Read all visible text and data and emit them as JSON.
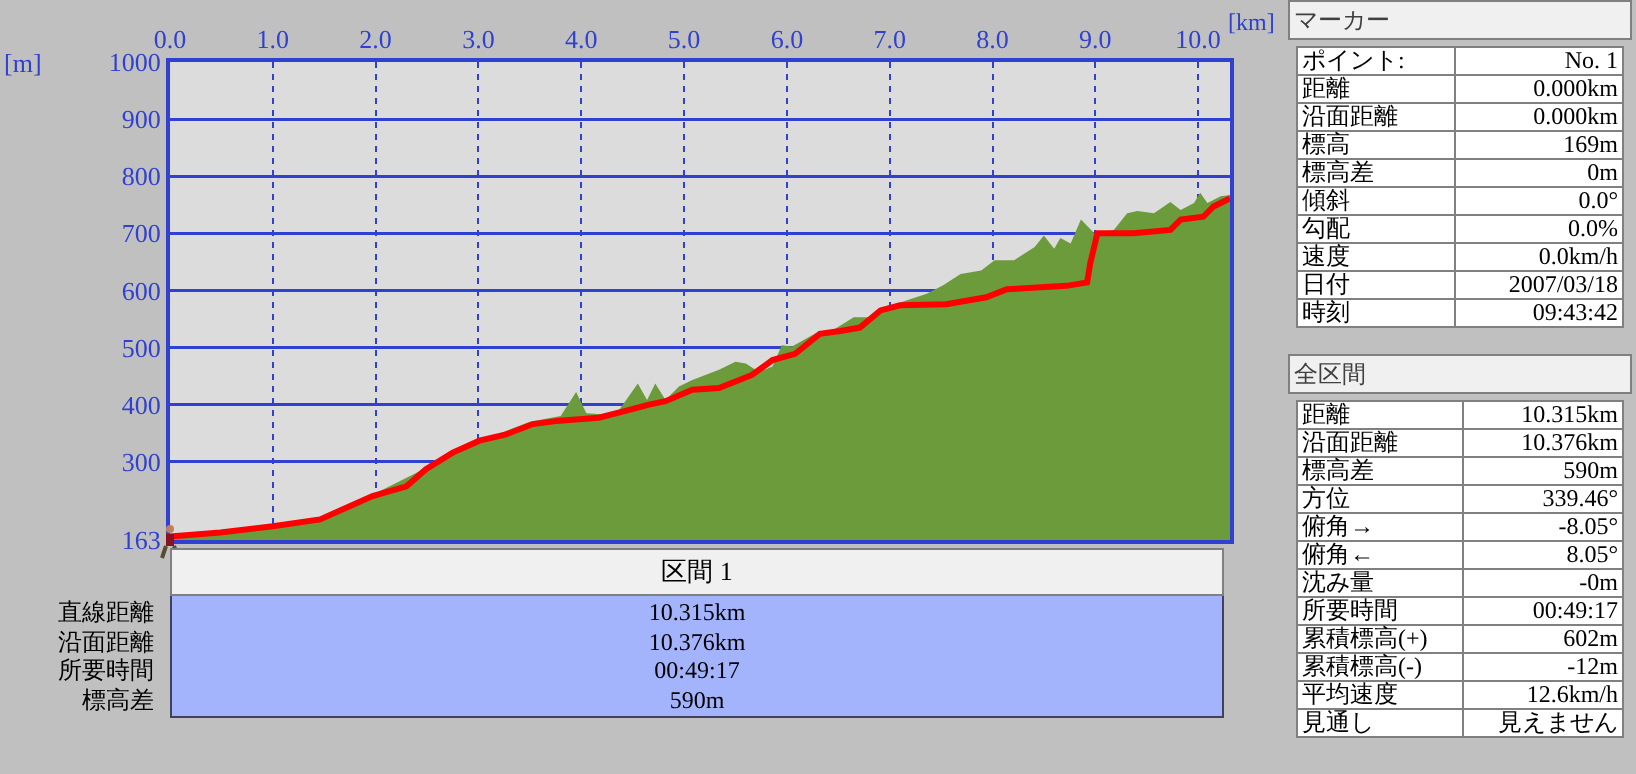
{
  "chart_data": [
    {
      "type": "area",
      "xlabel": "[km]",
      "ylabel": "[m]",
      "xlim": [
        0,
        10.31
      ],
      "ylim": [
        163,
        1000
      ],
      "xticks": [
        {
          "value": 0,
          "label": "0.0"
        },
        {
          "value": 1,
          "label": "1.0"
        },
        {
          "value": 2,
          "label": "2.0"
        },
        {
          "value": 3,
          "label": "3.0"
        },
        {
          "value": 4,
          "label": "4.0"
        },
        {
          "value": 5,
          "label": "5.0"
        },
        {
          "value": 6,
          "label": "6.0"
        },
        {
          "value": 7,
          "label": "7.0"
        },
        {
          "value": 8,
          "label": "8.0"
        },
        {
          "value": 9,
          "label": "9.0"
        },
        {
          "value": 10,
          "label": "10.0"
        }
      ],
      "yticks": [
        163,
        300,
        400,
        500,
        600,
        700,
        800,
        900,
        1000
      ],
      "grid": true,
      "series": [
        {
          "type": "area",
          "color": "#6b9b3b",
          "x": [
            0,
            0.5,
            1,
            1.5,
            2,
            2.5,
            3,
            3.5,
            3.8,
            3.95,
            4.05,
            4.21,
            4.37,
            4.55,
            4.64,
            4.72,
            4.82,
            4.95,
            5.08,
            5.34,
            5.5,
            5.6,
            5.73,
            5.86,
            5.95,
            6.05,
            6.28,
            6.4,
            6.65,
            6.84,
            6.97,
            7.36,
            7.52,
            7.69,
            7.89,
            8.02,
            8.21,
            8.41,
            8.5,
            8.6,
            8.66,
            8.76,
            8.86,
            8.99,
            9.18,
            9.31,
            9.41,
            9.57,
            9.73,
            9.83,
            9.96,
            10.02,
            10.09,
            10.22,
            10.31
          ],
          "values": [
            169,
            176,
            190,
            202,
            245,
            290,
            335,
            370,
            380,
            422,
            385,
            383,
            391,
            437,
            408,
            437,
            408,
            432,
            443,
            461,
            475,
            472,
            457,
            467,
            504,
            502,
            525,
            525,
            553,
            553,
            571,
            594,
            609,
            629,
            635,
            653,
            653,
            676,
            696,
            673,
            692,
            682,
            724,
            700,
            706,
            735,
            739,
            735,
            755,
            741,
            753,
            771,
            753,
            765,
            767
          ]
        },
        {
          "type": "line",
          "color": "#ff0000",
          "x": [
            0,
            0.06,
            0.49,
            1,
            1.46,
            1.97,
            2.3,
            2.49,
            2.75,
            3.01,
            3.27,
            3.53,
            3.79,
            4.17,
            4.43,
            4.66,
            4.82,
            5.08,
            5.34,
            5.66,
            5.86,
            6.08,
            6.32,
            6.52,
            6.71,
            6.91,
            7.1,
            7.55,
            7.94,
            8.14,
            8.72,
            8.92,
            8.95,
            9.02,
            9.37,
            9.73,
            9.83,
            10.05,
            10.15,
            10.31
          ],
          "values": [
            169,
            170,
            176,
            187,
            199,
            240,
            257,
            287,
            316,
            337,
            348,
            366,
            372,
            377,
            389,
            400,
            406,
            426,
            429,
            452,
            478,
            489,
            524,
            529,
            535,
            565,
            574,
            576,
            588,
            602,
            608,
            614,
            647,
            700,
            700,
            706,
            724,
            729,
            747,
            761
          ]
        }
      ]
    },
    {
      "type": "other",
      "title": "区間 1",
      "annotations": [
        "直線距離",
        "10.315km",
        "沿面距離",
        "10.376km",
        "所要時間",
        "00:49:17",
        "標高差",
        "590m"
      ]
    },
    {
      "type": "other",
      "title": "マーカー",
      "annotations": [
        "ポイント:",
        "No. 1",
        "距離",
        "0.000km",
        "沿面距離",
        "0.000km",
        "標高",
        "169m",
        "標高差",
        "0m",
        "傾斜",
        "0.0°",
        "勾配",
        "0.0%",
        "速度",
        "0.0km/h",
        "日付",
        "2007/03/18",
        "時刻",
        "09:43:42"
      ]
    },
    {
      "type": "other",
      "title": "全区間",
      "annotations": [
        "距離",
        "10.315km",
        "沿面距離",
        "10.376km",
        "標高差",
        "590m",
        "方位",
        "339.46°",
        "俯角→",
        "-8.05°",
        "俯角←",
        "8.05°",
        "沈み量",
        "-0m",
        "所要時間",
        "00:49:17",
        "累積標高(+)",
        "602m",
        "累積標高(-)",
        "-12m",
        "平均速度",
        "12.6km/h",
        "見通し",
        "見えません"
      ]
    }
  ]
}
